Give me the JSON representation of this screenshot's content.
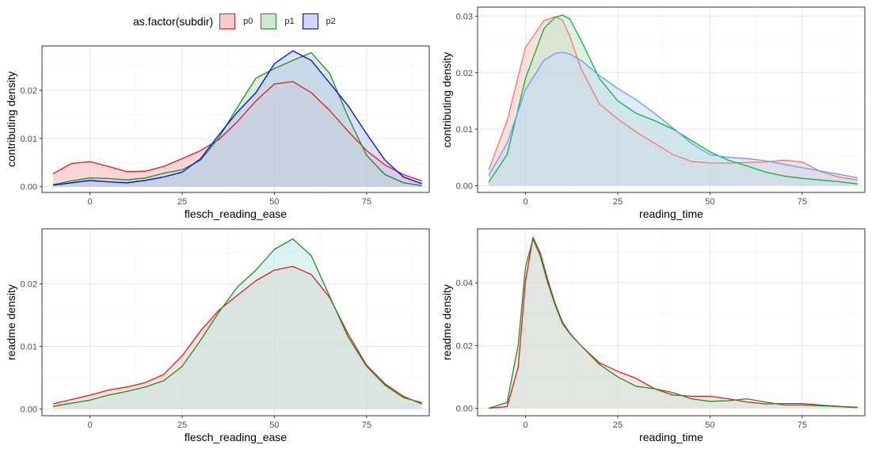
{
  "legend": {
    "title": "as.factor(subdir)",
    "items": [
      {
        "label": "p0",
        "stroke": "#e41a1c",
        "fill": "#f8cccc"
      },
      {
        "label": "p1",
        "stroke": "#228b22",
        "fill": "#cfe9cf"
      },
      {
        "label": "p2",
        "stroke": "#0000ff",
        "fill": "#cfd6f7"
      }
    ]
  },
  "chart_data": [
    {
      "type": "area",
      "xlabel": "flesch_reading_ease",
      "ylabel": "contributing density",
      "xlim": [
        -13,
        92
      ],
      "ylim": [
        -0.0012,
        0.0292
      ],
      "xticks": [
        0,
        25,
        50,
        75
      ],
      "yticks": [
        0.0,
        0.01,
        0.02
      ],
      "ytick_labels": [
        "0.00",
        "0.01",
        "0.02"
      ],
      "grid": true,
      "series": [
        {
          "name": "p0",
          "color": "#e41a1c",
          "fill": "#f5b5b5",
          "x": [
            -10,
            -5,
            0,
            5,
            10,
            15,
            20,
            25,
            30,
            35,
            40,
            45,
            50,
            55,
            60,
            65,
            70,
            75,
            80,
            85,
            90
          ],
          "y": [
            0.0027,
            0.0048,
            0.0052,
            0.0042,
            0.0031,
            0.0032,
            0.0042,
            0.0058,
            0.0075,
            0.0098,
            0.0135,
            0.0178,
            0.0213,
            0.0218,
            0.0195,
            0.0158,
            0.0115,
            0.0075,
            0.0045,
            0.0025,
            0.0012
          ]
        },
        {
          "name": "p1",
          "color": "#228b22",
          "fill": "#b8e3b8",
          "x": [
            -10,
            -5,
            0,
            5,
            10,
            15,
            20,
            25,
            30,
            35,
            40,
            45,
            50,
            55,
            60,
            65,
            70,
            75,
            80,
            85,
            90
          ],
          "y": [
            0.0004,
            0.0012,
            0.0018,
            0.0017,
            0.0014,
            0.0018,
            0.0028,
            0.0035,
            0.0055,
            0.0102,
            0.0165,
            0.0225,
            0.0245,
            0.0262,
            0.0278,
            0.0235,
            0.0145,
            0.0065,
            0.0025,
            0.0008,
            0.0002
          ]
        },
        {
          "name": "p2",
          "color": "#0000ff",
          "fill": "#bcc6f5",
          "x": [
            -10,
            -5,
            0,
            5,
            10,
            15,
            20,
            25,
            30,
            35,
            40,
            45,
            50,
            55,
            60,
            65,
            70,
            75,
            80,
            85,
            90
          ],
          "y": [
            0.0003,
            0.0008,
            0.0013,
            0.001,
            0.0008,
            0.0013,
            0.002,
            0.003,
            0.0058,
            0.0108,
            0.0155,
            0.0195,
            0.0255,
            0.0282,
            0.0262,
            0.0215,
            0.0168,
            0.011,
            0.0055,
            0.002,
            0.0006
          ]
        }
      ]
    },
    {
      "type": "area",
      "xlabel": "reading_time",
      "ylabel": "contributing density",
      "xlim": [
        -13,
        92
      ],
      "ylim": [
        -0.0012,
        0.0316
      ],
      "xticks": [
        0,
        25,
        50,
        75
      ],
      "yticks": [
        0.0,
        0.01,
        0.02,
        0.03
      ],
      "ytick_labels": [
        "0.00",
        "0.01",
        "0.02",
        "0.03"
      ],
      "grid": true,
      "series": [
        {
          "name": "p0",
          "color": "#f8766d",
          "fill": "#f7c6c2",
          "x": [
            -10,
            -5,
            0,
            5,
            8,
            10,
            12,
            15,
            20,
            25,
            30,
            35,
            40,
            45,
            50,
            55,
            60,
            65,
            70,
            75,
            80,
            85,
            90
          ],
          "y": [
            0.0028,
            0.0115,
            0.0245,
            0.0292,
            0.0299,
            0.0293,
            0.0265,
            0.0208,
            0.0145,
            0.0118,
            0.0095,
            0.0075,
            0.0055,
            0.0043,
            0.004,
            0.004,
            0.0041,
            0.0042,
            0.0045,
            0.0042,
            0.0025,
            0.0015,
            0.001
          ]
        },
        {
          "name": "p1",
          "color": "#00ba38",
          "fill": "#bfe9c8",
          "x": [
            -10,
            -5,
            0,
            5,
            8,
            10,
            12,
            15,
            20,
            25,
            30,
            35,
            40,
            45,
            50,
            55,
            60,
            65,
            70,
            75,
            80,
            85,
            90
          ],
          "y": [
            0.0006,
            0.0055,
            0.019,
            0.0278,
            0.0298,
            0.0302,
            0.0295,
            0.0258,
            0.019,
            0.015,
            0.0128,
            0.0115,
            0.01,
            0.008,
            0.006,
            0.0045,
            0.0035,
            0.0024,
            0.0017,
            0.0013,
            0.001,
            0.0007,
            0.0003
          ]
        },
        {
          "name": "p2",
          "color": "#619cff",
          "fill": "#c9d9f7",
          "x": [
            -10,
            -5,
            0,
            5,
            8,
            10,
            12,
            15,
            20,
            25,
            30,
            35,
            40,
            45,
            50,
            55,
            60,
            65,
            70,
            75,
            80,
            85,
            90
          ],
          "y": [
            0.0018,
            0.0075,
            0.017,
            0.0222,
            0.0234,
            0.0236,
            0.0233,
            0.0222,
            0.0195,
            0.0172,
            0.0152,
            0.0128,
            0.0102,
            0.0075,
            0.0055,
            0.005,
            0.0048,
            0.0044,
            0.0038,
            0.0032,
            0.0026,
            0.002,
            0.0014
          ]
        }
      ]
    },
    {
      "type": "area",
      "xlabel": "flesch_reading_ease",
      "ylabel": "readme density",
      "xlim": [
        -13,
        92
      ],
      "ylim": [
        -0.0011,
        0.0288
      ],
      "xticks": [
        0,
        25,
        50,
        75
      ],
      "yticks": [
        0.0,
        0.01,
        0.02
      ],
      "ytick_labels": [
        "0.00",
        "0.01",
        "0.02"
      ],
      "grid": true,
      "series": [
        {
          "name": "p0",
          "color": "#e41a1c",
          "fill": "#f7c6c2",
          "x": [
            -10,
            -5,
            0,
            5,
            10,
            15,
            20,
            25,
            30,
            35,
            40,
            45,
            50,
            55,
            60,
            65,
            70,
            75,
            80,
            85,
            90
          ],
          "y": [
            0.0008,
            0.0015,
            0.0022,
            0.003,
            0.0035,
            0.0042,
            0.0055,
            0.0085,
            0.0125,
            0.0158,
            0.0182,
            0.0205,
            0.0222,
            0.0228,
            0.0215,
            0.0178,
            0.012,
            0.007,
            0.004,
            0.002,
            0.0008
          ]
        },
        {
          "name": "p1",
          "color": "#228b22",
          "fill": "#bfe9e6",
          "x": [
            -10,
            -5,
            0,
            5,
            10,
            15,
            20,
            25,
            30,
            35,
            40,
            45,
            50,
            55,
            60,
            65,
            70,
            75,
            80,
            85,
            90
          ],
          "y": [
            0.0004,
            0.0009,
            0.0014,
            0.0022,
            0.0028,
            0.0035,
            0.0045,
            0.0068,
            0.011,
            0.0155,
            0.0195,
            0.0222,
            0.0255,
            0.0272,
            0.0245,
            0.018,
            0.0115,
            0.0068,
            0.0038,
            0.0018,
            0.001
          ]
        }
      ]
    },
    {
      "type": "area",
      "xlabel": "reading_time",
      "ylabel": "readme density",
      "xlim": [
        -13,
        92
      ],
      "ylim": [
        -0.0024,
        0.0572
      ],
      "xticks": [
        0,
        25,
        50,
        75
      ],
      "yticks": [
        0.0,
        0.02,
        0.04
      ],
      "ytick_labels": [
        "0.00",
        "0.02",
        "0.04"
      ],
      "grid": true,
      "series": [
        {
          "name": "p0",
          "color": "#e41a1c",
          "fill": "#f2d2cf",
          "x": [
            -10,
            -5,
            -2,
            0,
            2,
            4,
            6,
            8,
            10,
            12,
            15,
            20,
            25,
            30,
            35,
            40,
            45,
            50,
            55,
            60,
            65,
            70,
            75,
            80,
            85,
            90
          ],
          "y": [
            0.0,
            0.0005,
            0.013,
            0.0405,
            0.0545,
            0.0495,
            0.041,
            0.0335,
            0.0275,
            0.024,
            0.02,
            0.0145,
            0.0118,
            0.0095,
            0.0062,
            0.0042,
            0.0038,
            0.0038,
            0.003,
            0.002,
            0.0014,
            0.0015,
            0.0015,
            0.001,
            0.0006,
            0.0003
          ]
        },
        {
          "name": "p1",
          "color": "#228b22",
          "fill": "#cfe6df",
          "x": [
            -10,
            -5,
            -2,
            0,
            2,
            4,
            6,
            8,
            10,
            12,
            15,
            20,
            25,
            30,
            35,
            40,
            45,
            50,
            55,
            60,
            65,
            70,
            75,
            80,
            85,
            90
          ],
          "y": [
            0.0,
            0.0018,
            0.02,
            0.045,
            0.054,
            0.0485,
            0.04,
            0.033,
            0.027,
            0.0238,
            0.02,
            0.014,
            0.01,
            0.007,
            0.0062,
            0.005,
            0.003,
            0.0022,
            0.0024,
            0.003,
            0.002,
            0.001,
            0.001,
            0.0008,
            0.0005,
            0.0002
          ]
        }
      ]
    }
  ]
}
